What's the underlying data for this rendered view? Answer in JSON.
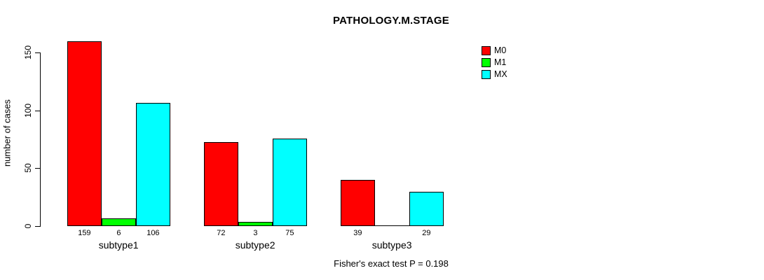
{
  "title": "PATHOLOGY.M.STAGE",
  "caption": "Fisher's exact test P = 0.198",
  "legend": {
    "items": [
      {
        "label": "M0",
        "color": "#FF0000"
      },
      {
        "label": "M1",
        "color": "#00FF00"
      },
      {
        "label": "MX",
        "color": "#00FFFF"
      }
    ]
  },
  "chart_data": {
    "type": "bar",
    "title": "PATHOLOGY.M.STAGE",
    "categories": [
      "subtype1",
      "subtype2",
      "subtype3"
    ],
    "series": [
      {
        "name": "M0",
        "color": "#FF0000",
        "values": [
          159,
          72,
          39
        ]
      },
      {
        "name": "M1",
        "color": "#00FF00",
        "values": [
          6,
          3,
          0
        ]
      },
      {
        "name": "MX",
        "color": "#00FFFF",
        "values": [
          106,
          75,
          29
        ]
      }
    ],
    "bar_labels": [
      [
        "159",
        "6",
        "106"
      ],
      [
        "72",
        "3",
        "75"
      ],
      [
        "39",
        "",
        "29"
      ]
    ],
    "xlabel": "",
    "ylabel": "number of cases",
    "ylim": [
      0,
      150
    ],
    "yticks": [
      0,
      50,
      100,
      150
    ],
    "y_tick_labels": [
      "0",
      "50",
      "100",
      "150"
    ],
    "grid": false,
    "legend_position": "right",
    "annotation": "Fisher's exact test P = 0.198"
  }
}
